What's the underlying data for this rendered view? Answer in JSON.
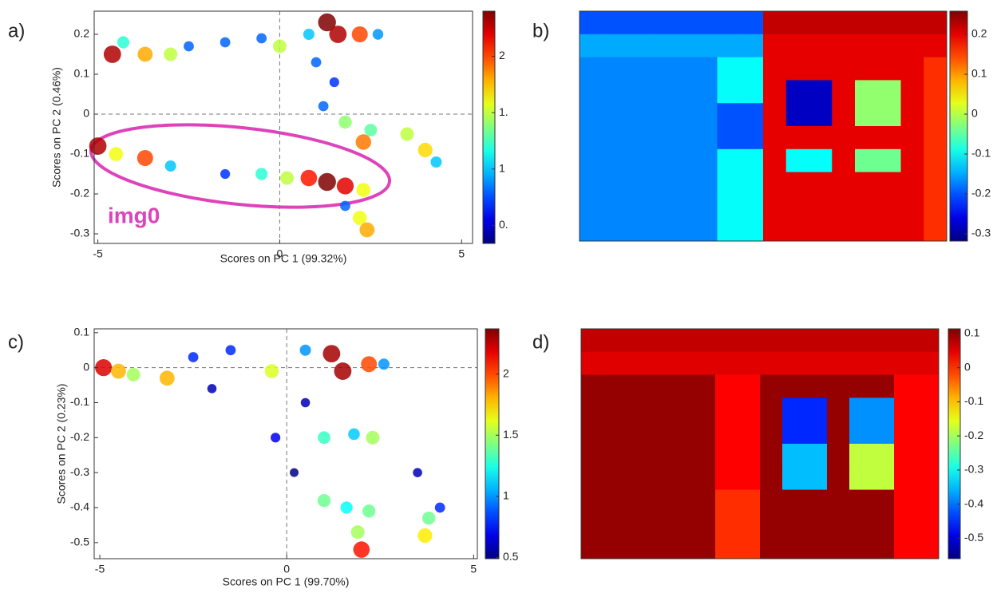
{
  "chart_data": [
    {
      "type": "scatter",
      "panel_label": "a)",
      "xlabel": "Scores on PC 1 (99.32%)",
      "ylabel": "Scores on PC 2 (0.46%)",
      "annotation": "img0",
      "xlim": [
        -5.1,
        5.3
      ],
      "ylim": [
        -0.324,
        0.258
      ],
      "xticks": [
        -5,
        0,
        5
      ],
      "yticks": [
        0.2,
        0.1,
        0,
        -0.1,
        -0.2,
        -0.3
      ],
      "zero_lines": true,
      "colormap": "jet",
      "x": [
        -4.6,
        -4.3,
        -3.7,
        -3.0,
        -2.5,
        -1.5,
        -0.5,
        0,
        0.8,
        1.3,
        1.6,
        2.2,
        2.7,
        1.0,
        1.5,
        1.2,
        1.8,
        2.5,
        3.5,
        4.0,
        4.3,
        2.3,
        -5.0,
        -4.5,
        -3.7,
        -3.0,
        -1.5,
        -0.5,
        0.2,
        0.8,
        1.3,
        1.8,
        2.3,
        1.8,
        2.2,
        2.4
      ],
      "y": [
        0.15,
        0.18,
        0.15,
        0.15,
        0.17,
        0.18,
        0.19,
        0.17,
        0.2,
        0.23,
        0.2,
        0.2,
        0.2,
        0.13,
        0.08,
        0.02,
        -0.02,
        -0.04,
        -0.05,
        -0.09,
        -0.12,
        -0.07,
        -0.08,
        -0.1,
        -0.11,
        -0.13,
        -0.15,
        -0.15,
        -0.16,
        -0.16,
        -0.17,
        -0.18,
        -0.19,
        -0.23,
        -0.26,
        -0.29
      ],
      "values": [
        2.3,
        1.2,
        1.8,
        1.5,
        0.8,
        0.8,
        0.8,
        1.5,
        1.0,
        2.4,
        2.3,
        2.0,
        0.9,
        0.8,
        0.7,
        0.8,
        1.4,
        1.3,
        1.5,
        1.7,
        1.0,
        1.9,
        2.3,
        1.6,
        2.0,
        1.0,
        0.7,
        1.2,
        1.5,
        2.1,
        2.4,
        2.2,
        1.6,
        0.8,
        1.6,
        1.8
      ],
      "colorbar": {
        "lim": [
          0.34,
          2.4
        ],
        "ticks": [
          2,
          {
            "value": 1.5,
            "label": "1."
          },
          1,
          {
            "value": 0.5,
            "label": "0."
          }
        ]
      }
    },
    {
      "type": "heatmap",
      "panel_label": "b)",
      "colormap": "jet",
      "values": [
        [
          -0.2,
          -0.2,
          -0.2,
          -0.2,
          -0.2,
          -0.2,
          -0.2,
          -0.2,
          0.22,
          0.22,
          0.22,
          0.22,
          0.22,
          0.22,
          0.22,
          0.22
        ],
        [
          -0.15,
          -0.15,
          -0.15,
          -0.15,
          -0.15,
          -0.15,
          -0.15,
          -0.15,
          0.2,
          0.2,
          0.2,
          0.2,
          0.2,
          0.2,
          0.2,
          0.2
        ],
        [
          -0.17,
          -0.17,
          -0.17,
          -0.17,
          -0.17,
          -0.17,
          -0.1,
          -0.1,
          0.2,
          0.2,
          0.2,
          0.2,
          0.2,
          0.2,
          0.2,
          0.16
        ],
        [
          -0.17,
          -0.17,
          -0.17,
          -0.17,
          -0.17,
          -0.17,
          -0.1,
          -0.1,
          0.2,
          -0.28,
          -0.28,
          0.2,
          -0.02,
          -0.02,
          0.2,
          0.16
        ],
        [
          -0.17,
          -0.17,
          -0.17,
          -0.17,
          -0.17,
          -0.17,
          -0.2,
          -0.2,
          0.2,
          -0.28,
          -0.28,
          0.2,
          -0.02,
          -0.02,
          0.2,
          0.16
        ],
        [
          -0.17,
          -0.17,
          -0.17,
          -0.17,
          -0.17,
          -0.17,
          -0.2,
          -0.2,
          0.2,
          0.2,
          0.2,
          0.2,
          0.2,
          0.2,
          0.2,
          0.16
        ],
        [
          -0.17,
          -0.17,
          -0.17,
          -0.17,
          -0.17,
          -0.17,
          -0.1,
          -0.1,
          0.2,
          -0.1,
          -0.1,
          0.2,
          -0.04,
          -0.04,
          0.2,
          0.16
        ],
        [
          -0.17,
          -0.17,
          -0.17,
          -0.17,
          -0.17,
          -0.17,
          -0.1,
          -0.1,
          0.2,
          0.2,
          0.2,
          0.2,
          0.2,
          0.2,
          0.2,
          0.16
        ],
        [
          -0.17,
          -0.17,
          -0.17,
          -0.17,
          -0.17,
          -0.17,
          -0.1,
          -0.1,
          0.2,
          0.2,
          0.2,
          0.2,
          0.2,
          0.2,
          0.2,
          0.16
        ],
        [
          -0.17,
          -0.17,
          -0.17,
          -0.17,
          -0.17,
          -0.17,
          -0.1,
          -0.1,
          0.2,
          0.2,
          0.2,
          0.2,
          0.2,
          0.2,
          0.2,
          0.16
        ]
      ],
      "colorbar": {
        "lim": [
          -0.318,
          0.258
        ],
        "ticks": [
          0.2,
          0.1,
          0,
          -0.1,
          -0.2,
          -0.3
        ]
      }
    },
    {
      "type": "scatter",
      "panel_label": "c)",
      "xlabel": "Scores on PC 1 (99.70%)",
      "ylabel": "Scores on PC 2 (0.23%)",
      "xlim": [
        -5.15,
        5.1
      ],
      "ylim": [
        -0.546,
        0.111
      ],
      "xticks": [
        -5,
        0,
        5
      ],
      "yticks": [
        0.1,
        0,
        -0.1,
        -0.2,
        -0.3,
        -0.4,
        -0.5
      ],
      "zero_lines": true,
      "colormap": "jet",
      "x": [
        -4.9,
        -4.5,
        -4.1,
        -3.2,
        -2.5,
        -1.5,
        -0.4,
        0.5,
        1.2,
        1.5,
        2.2,
        2.6,
        -2.0,
        0.5,
        1.0,
        1.8,
        2.3,
        -0.3,
        3.5,
        1.0,
        1.6,
        2.2,
        1.9,
        2.0,
        3.8,
        3.7,
        4.1,
        0.2
      ],
      "y": [
        0,
        -0.01,
        -0.02,
        -0.03,
        0.03,
        0.05,
        -0.01,
        0.05,
        0.04,
        -0.01,
        0.01,
        0.01,
        -0.06,
        -0.1,
        -0.2,
        -0.19,
        -0.2,
        -0.2,
        -0.3,
        -0.38,
        -0.4,
        -0.41,
        -0.47,
        -0.52,
        -0.43,
        -0.48,
        -0.4,
        -0.3
      ],
      "values": [
        2.2,
        1.8,
        1.5,
        1.8,
        0.8,
        0.8,
        1.6,
        1.0,
        2.3,
        2.3,
        2.0,
        1.0,
        0.6,
        0.6,
        1.3,
        1.1,
        1.5,
        0.7,
        0.6,
        1.4,
        1.2,
        1.4,
        1.5,
        2.1,
        1.4,
        1.7,
        0.8,
        0.5
      ],
      "colorbar": {
        "lim": [
          0.49,
          2.37
        ],
        "ticks": [
          2,
          1.5,
          1,
          0.5
        ]
      }
    },
    {
      "type": "heatmap",
      "panel_label": "d)",
      "colormap": "jet",
      "values": [
        [
          0.07,
          0.07,
          0.07,
          0.07,
          0.07,
          0.07,
          0.07,
          0.07,
          0.07,
          0.07,
          0.07,
          0.07,
          0.07,
          0.07,
          0.07,
          0.07
        ],
        [
          0.05,
          0.05,
          0.05,
          0.05,
          0.05,
          0.05,
          0.05,
          0.05,
          0.05,
          0.05,
          0.05,
          0.05,
          0.05,
          0.05,
          0.05,
          0.05
        ],
        [
          0.1,
          0.1,
          0.1,
          0.1,
          0.1,
          0.1,
          0.03,
          0.03,
          0.1,
          0.1,
          0.1,
          0.1,
          0.1,
          0.1,
          0.03,
          0.03
        ],
        [
          0.1,
          0.1,
          0.1,
          0.1,
          0.1,
          0.1,
          0.03,
          0.03,
          0.1,
          -0.45,
          -0.45,
          0.1,
          -0.38,
          -0.38,
          0.03,
          0.03
        ],
        [
          0.1,
          0.1,
          0.1,
          0.1,
          0.1,
          0.1,
          0.03,
          0.03,
          0.1,
          -0.45,
          -0.45,
          0.1,
          -0.38,
          -0.38,
          0.03,
          0.03
        ],
        [
          0.1,
          0.1,
          0.1,
          0.1,
          0.1,
          0.1,
          0.03,
          0.03,
          0.1,
          -0.35,
          -0.35,
          0.1,
          -0.18,
          -0.18,
          0.03,
          0.03
        ],
        [
          0.1,
          0.1,
          0.1,
          0.1,
          0.1,
          0.1,
          0.03,
          0.03,
          0.1,
          -0.35,
          -0.35,
          0.1,
          -0.18,
          -0.18,
          0.03,
          0.03
        ],
        [
          0.1,
          0.1,
          0.1,
          0.1,
          0.1,
          0.1,
          0,
          0,
          0.1,
          0.1,
          0.1,
          0.1,
          0.1,
          0.1,
          0.03,
          0.03
        ],
        [
          0.1,
          0.1,
          0.1,
          0.1,
          0.1,
          0.1,
          0,
          0,
          0.1,
          0.1,
          0.1,
          0.1,
          0.1,
          0.1,
          0.03,
          0.03
        ],
        [
          0.1,
          0.1,
          0.1,
          0.1,
          0.1,
          0.1,
          0,
          0,
          0.1,
          0.1,
          0.1,
          0.1,
          0.1,
          0.1,
          0.03,
          0.03
        ]
      ],
      "colorbar": {
        "lim": [
          -0.56,
          0.114
        ],
        "ticks": [
          0.1,
          0,
          -0.1,
          -0.2,
          -0.3,
          -0.4,
          -0.5
        ]
      }
    }
  ]
}
